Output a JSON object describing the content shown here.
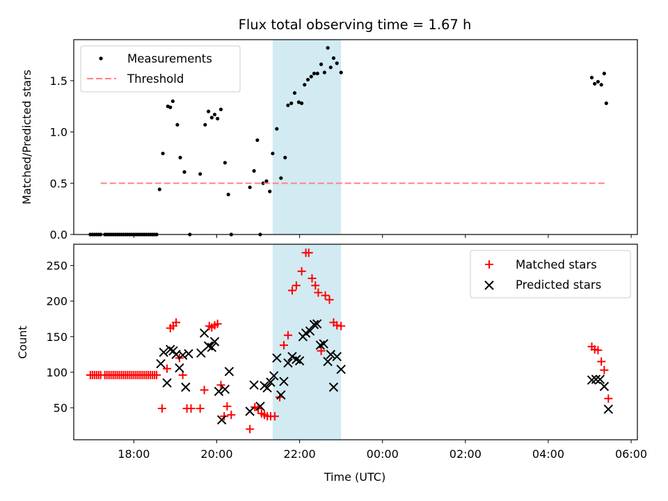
{
  "figure": {
    "title": "Flux total observing time = 1.67 h",
    "xlabel": "Time (UTC)",
    "highlight_color": "#add8e6",
    "highlight_range": [
      21.35,
      23.0
    ]
  },
  "chart_data": [
    {
      "type": "scatter",
      "ylabel": "Matched/Predicted stars",
      "xlim": [
        16.55,
        30.15
      ],
      "ylim": [
        0,
        1.9
      ],
      "yticks": [
        0.0,
        0.5,
        1.0,
        1.5
      ],
      "ytick_labels": [
        "0.0",
        "0.5",
        "1.0",
        "1.5"
      ],
      "legend": {
        "placement": "top-left",
        "entries": [
          "Measurements",
          "Threshold"
        ]
      },
      "series": [
        {
          "name": "Measurements",
          "color": "#000000",
          "marker": "dot",
          "x": [
            16.95,
            17.0,
            17.05,
            17.1,
            17.15,
            17.2,
            17.3,
            17.35,
            17.4,
            17.45,
            17.5,
            17.55,
            17.6,
            17.65,
            17.7,
            17.75,
            17.8,
            17.85,
            17.9,
            17.95,
            18.0,
            18.05,
            18.1,
            18.15,
            18.2,
            18.25,
            18.3,
            18.35,
            18.4,
            18.45,
            18.5,
            18.55,
            18.62,
            18.7,
            18.82,
            18.88,
            18.94,
            19.05,
            19.12,
            19.22,
            19.35,
            19.6,
            19.72,
            19.8,
            19.88,
            19.95,
            20.02,
            20.1,
            20.2,
            20.28,
            20.35,
            20.8,
            20.9,
            20.98,
            21.05,
            21.12,
            21.2,
            21.28,
            21.35,
            21.45,
            21.55,
            21.65,
            21.72,
            21.8,
            21.88,
            21.98,
            22.05,
            22.12,
            22.2,
            22.28,
            22.35,
            22.43,
            22.52,
            22.6,
            22.68,
            22.75,
            22.82,
            22.9,
            23.0,
            29.05,
            29.12,
            29.2,
            29.28,
            29.35,
            29.4
          ],
          "y": [
            0,
            0,
            0,
            0,
            0,
            0,
            0,
            0,
            0,
            0,
            0,
            0,
            0,
            0,
            0,
            0,
            0,
            0,
            0,
            0,
            0,
            0,
            0,
            0,
            0,
            0,
            0,
            0,
            0,
            0,
            0,
            0,
            0.44,
            0.79,
            1.25,
            1.24,
            1.3,
            1.07,
            0.75,
            0.61,
            0,
            0.59,
            1.07,
            1.2,
            1.14,
            1.17,
            1.13,
            1.22,
            0.7,
            0.39,
            0,
            0.46,
            0.62,
            0.92,
            0,
            0.5,
            0.52,
            0.42,
            0.79,
            1.03,
            0.55,
            0.75,
            1.26,
            1.28,
            1.38,
            1.29,
            1.28,
            1.46,
            1.51,
            1.54,
            1.57,
            1.57,
            1.66,
            1.58,
            1.82,
            1.63,
            1.72,
            1.67,
            1.58,
            1.53,
            1.47,
            1.49,
            1.46,
            1.57,
            1.28
          ]
        },
        {
          "name": "Threshold",
          "color": "#ff8080",
          "style": "dashed",
          "x": [
            17.2,
            29.4
          ],
          "y": [
            0.5,
            0.5
          ]
        }
      ]
    },
    {
      "type": "scatter",
      "ylabel": "Count",
      "xlim": [
        16.55,
        30.15
      ],
      "ylim": [
        5,
        280
      ],
      "yticks": [
        50,
        100,
        150,
        200,
        250
      ],
      "ytick_labels": [
        "50",
        "100",
        "150",
        "200",
        "250"
      ],
      "xticks": [
        18,
        20,
        22,
        24,
        26,
        28,
        30
      ],
      "xtick_labels": [
        "18:00",
        "20:00",
        "22:00",
        "00:00",
        "02:00",
        "04:00",
        "06:00"
      ],
      "legend": {
        "placement": "top-right",
        "entries": [
          "Matched stars",
          "Predicted stars"
        ]
      },
      "series": [
        {
          "name": "Matched stars",
          "color": "#ff0000",
          "marker": "plus",
          "x": [
            16.95,
            17.0,
            17.05,
            17.1,
            17.15,
            17.2,
            17.3,
            17.35,
            17.4,
            17.45,
            17.5,
            17.55,
            17.6,
            17.65,
            17.7,
            17.75,
            17.8,
            17.85,
            17.9,
            17.95,
            18.0,
            18.05,
            18.1,
            18.15,
            18.2,
            18.25,
            18.3,
            18.35,
            18.4,
            18.45,
            18.5,
            18.55,
            18.68,
            18.8,
            18.88,
            18.95,
            19.02,
            19.1,
            19.18,
            19.28,
            19.38,
            19.6,
            19.7,
            19.82,
            19.88,
            19.95,
            20.02,
            20.1,
            20.18,
            20.25,
            20.35,
            20.8,
            20.92,
            21.0,
            21.08,
            21.15,
            21.22,
            21.3,
            21.4,
            21.52,
            21.62,
            21.72,
            21.82,
            21.92,
            22.05,
            22.15,
            22.22,
            22.3,
            22.38,
            22.45,
            22.52,
            22.62,
            22.72,
            22.82,
            22.9,
            23.0,
            29.05,
            29.12,
            29.2,
            29.28,
            29.35,
            29.45
          ],
          "y": [
            96,
            96,
            96,
            96,
            96,
            96,
            96,
            96,
            96,
            96,
            96,
            96,
            96,
            96,
            96,
            96,
            96,
            96,
            96,
            96,
            96,
            96,
            96,
            96,
            96,
            96,
            96,
            96,
            96,
            96,
            96,
            96,
            49,
            105,
            162,
            165,
            170,
            120,
            96,
            49,
            49,
            49,
            75,
            165,
            163,
            166,
            168,
            82,
            38,
            52,
            40,
            20,
            51,
            49,
            42,
            40,
            38,
            38,
            38,
            65,
            138,
            152,
            215,
            222,
            242,
            268,
            268,
            232,
            222,
            212,
            130,
            208,
            202,
            170,
            166,
            165,
            136,
            132,
            131,
            115,
            103,
            63
          ],
          "markers_extra": []
        },
        {
          "name": "Predicted stars",
          "color": "#000000",
          "marker": "x",
          "x": [
            18.65,
            18.72,
            18.8,
            18.88,
            18.95,
            19.02,
            19.1,
            19.18,
            19.25,
            19.32,
            19.62,
            19.7,
            19.8,
            19.88,
            19.95,
            20.05,
            20.12,
            20.2,
            20.3,
            20.8,
            20.9,
            21.05,
            21.15,
            21.22,
            21.3,
            21.38,
            21.45,
            21.55,
            21.62,
            21.72,
            21.82,
            21.92,
            22.0,
            22.08,
            22.15,
            22.25,
            22.35,
            22.42,
            22.5,
            22.58,
            22.68,
            22.75,
            22.82,
            22.9,
            23.0,
            29.05,
            29.15,
            29.25,
            29.35,
            29.45
          ],
          "y": [
            112,
            128,
            85,
            132,
            130,
            125,
            106,
            124,
            79,
            126,
            127,
            155,
            137,
            135,
            143,
            73,
            33,
            76,
            101,
            45,
            82,
            52,
            81,
            78,
            86,
            95,
            120,
            68,
            87,
            113,
            122,
            118,
            116,
            150,
            155,
            158,
            167,
            168,
            138,
            140,
            115,
            125,
            79,
            122,
            104,
            89,
            90,
            90,
            80,
            48
          ]
        }
      ]
    }
  ]
}
